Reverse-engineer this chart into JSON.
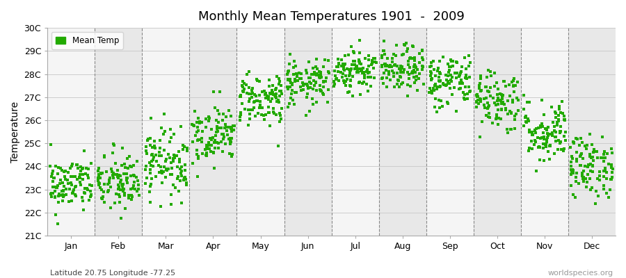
{
  "title": "Monthly Mean Temperatures 1901  -  2009",
  "ylabel": "Temperature",
  "subtitle": "Latitude 20.75 Longitude -77.25",
  "watermark": "worldspecies.org",
  "months": [
    "Jan",
    "Feb",
    "Mar",
    "Apr",
    "May",
    "Jun",
    "Jul",
    "Aug",
    "Sep",
    "Oct",
    "Nov",
    "Dec"
  ],
  "ylim": [
    21.0,
    30.0
  ],
  "yticks": [
    21,
    22,
    23,
    24,
    25,
    26,
    27,
    28,
    29,
    30
  ],
  "ytick_labels": [
    "21C",
    "22C",
    "23C",
    "24C",
    "25C",
    "26C",
    "27C",
    "28C",
    "29C",
    "30C"
  ],
  "dot_color": "#22aa00",
  "dot_size": 6,
  "background_light": "#f5f5f5",
  "background_dark": "#e8e8e8",
  "mean_temps": [
    23.2,
    23.3,
    24.2,
    25.4,
    26.9,
    27.6,
    28.2,
    28.2,
    27.7,
    26.9,
    25.5,
    24.0
  ],
  "std_devs": [
    0.55,
    0.65,
    0.7,
    0.6,
    0.55,
    0.45,
    0.45,
    0.45,
    0.6,
    0.65,
    0.65,
    0.65
  ],
  "n_years": 109,
  "seed": 42,
  "grid_color": "#cccccc",
  "dashed_color": "#888888",
  "figsize": [
    9.0,
    4.0
  ],
  "dpi": 100
}
